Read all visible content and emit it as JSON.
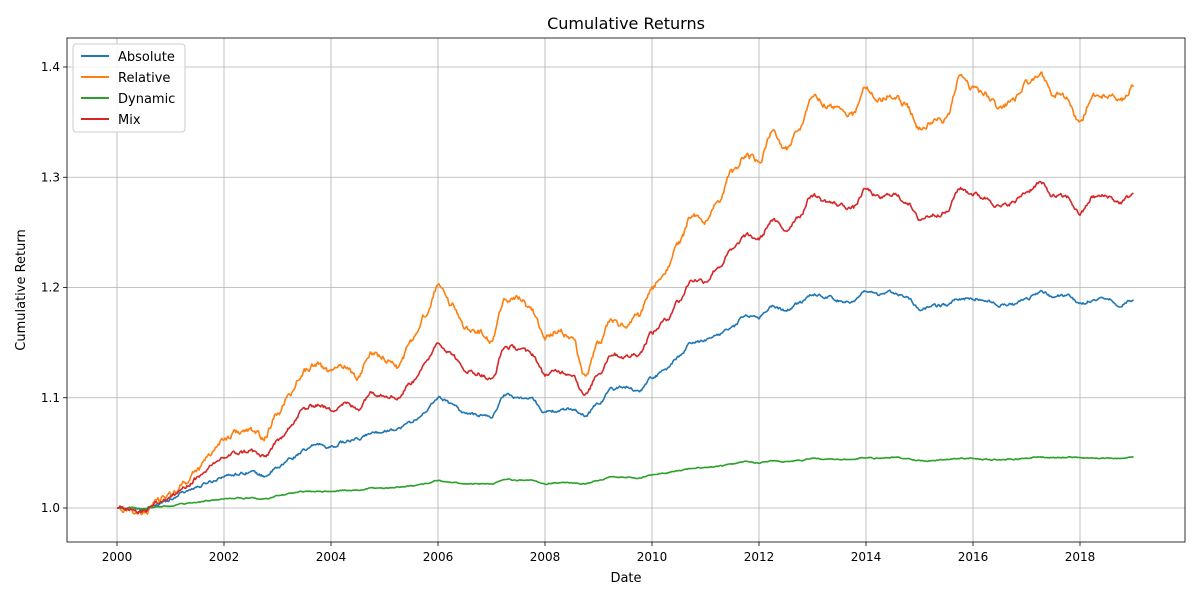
{
  "chart_data": {
    "type": "line",
    "title": "Cumulative Returns",
    "xlabel": "Date",
    "ylabel": "Cumulative Return",
    "xlim": [
      2000,
      2019
    ],
    "ylim": [
      0.97,
      1.425
    ],
    "xticks": [
      2000,
      2002,
      2004,
      2006,
      2008,
      2010,
      2012,
      2014,
      2016,
      2018
    ],
    "xtick_labels": [
      "2000",
      "2002",
      "2004",
      "2006",
      "2008",
      "2010",
      "2012",
      "2014",
      "2016",
      "2018"
    ],
    "yticks": [
      1.0,
      1.1,
      1.2,
      1.3,
      1.4
    ],
    "ytick_labels": [
      "1.0",
      "1.1",
      "1.2",
      "1.3",
      "1.4"
    ],
    "grid": true,
    "legend_position": "top-left",
    "x": [
      2000.0,
      2000.25,
      2000.5,
      2000.75,
      2001.0,
      2001.25,
      2001.5,
      2001.75,
      2002.0,
      2002.25,
      2002.5,
      2002.75,
      2003.0,
      2003.25,
      2003.5,
      2003.75,
      2004.0,
      2004.25,
      2004.5,
      2004.75,
      2005.0,
      2005.25,
      2005.5,
      2005.75,
      2006.0,
      2006.25,
      2006.5,
      2006.75,
      2007.0,
      2007.25,
      2007.5,
      2007.75,
      2008.0,
      2008.25,
      2008.5,
      2008.75,
      2009.0,
      2009.25,
      2009.5,
      2009.75,
      2010.0,
      2010.25,
      2010.5,
      2010.75,
      2011.0,
      2011.25,
      2011.5,
      2011.75,
      2012.0,
      2012.25,
      2012.5,
      2012.75,
      2013.0,
      2013.25,
      2013.5,
      2013.75,
      2014.0,
      2014.25,
      2014.5,
      2014.75,
      2015.0,
      2015.25,
      2015.5,
      2015.75,
      2016.0,
      2016.25,
      2016.5,
      2016.75,
      2017.0,
      2017.25,
      2017.5,
      2017.75,
      2018.0,
      2018.25,
      2018.5,
      2018.75,
      2019.0
    ],
    "series": [
      {
        "name": "Absolute",
        "color": "#1f77b4",
        "values": [
          1.0,
          1.0,
          0.998,
          1.003,
          1.008,
          1.015,
          1.019,
          1.024,
          1.029,
          1.031,
          1.033,
          1.029,
          1.036,
          1.045,
          1.052,
          1.058,
          1.055,
          1.06,
          1.062,
          1.068,
          1.07,
          1.072,
          1.078,
          1.086,
          1.1,
          1.095,
          1.086,
          1.084,
          1.083,
          1.103,
          1.1,
          1.099,
          1.087,
          1.088,
          1.09,
          1.084,
          1.095,
          1.108,
          1.11,
          1.106,
          1.118,
          1.125,
          1.137,
          1.15,
          1.152,
          1.158,
          1.164,
          1.175,
          1.173,
          1.183,
          1.179,
          1.186,
          1.194,
          1.192,
          1.188,
          1.187,
          1.196,
          1.193,
          1.196,
          1.192,
          1.18,
          1.183,
          1.184,
          1.19,
          1.19,
          1.188,
          1.184,
          1.185,
          1.19,
          1.196,
          1.192,
          1.193,
          1.185,
          1.189,
          1.191,
          1.184,
          1.189
        ]
      },
      {
        "name": "Relative",
        "color": "#ff7f0e",
        "values": [
          1.0,
          0.998,
          0.995,
          1.006,
          1.012,
          1.022,
          1.035,
          1.05,
          1.063,
          1.069,
          1.07,
          1.064,
          1.085,
          1.105,
          1.125,
          1.13,
          1.123,
          1.13,
          1.118,
          1.142,
          1.136,
          1.128,
          1.15,
          1.175,
          1.2,
          1.185,
          1.165,
          1.16,
          1.15,
          1.19,
          1.19,
          1.18,
          1.155,
          1.16,
          1.155,
          1.12,
          1.15,
          1.17,
          1.165,
          1.175,
          1.2,
          1.215,
          1.24,
          1.265,
          1.26,
          1.28,
          1.305,
          1.32,
          1.315,
          1.34,
          1.325,
          1.345,
          1.375,
          1.365,
          1.362,
          1.357,
          1.382,
          1.37,
          1.375,
          1.365,
          1.345,
          1.35,
          1.352,
          1.39,
          1.38,
          1.375,
          1.362,
          1.37,
          1.385,
          1.395,
          1.375,
          1.372,
          1.35,
          1.375,
          1.375,
          1.37,
          1.382
        ]
      },
      {
        "name": "Dynamic",
        "color": "#2ca02c",
        "values": [
          1.0,
          1.0,
          0.999,
          1.001,
          1.002,
          1.004,
          1.005,
          1.007,
          1.008,
          1.009,
          1.009,
          1.008,
          1.011,
          1.013,
          1.015,
          1.015,
          1.015,
          1.016,
          1.016,
          1.018,
          1.018,
          1.019,
          1.02,
          1.022,
          1.025,
          1.023,
          1.022,
          1.022,
          1.022,
          1.026,
          1.025,
          1.025,
          1.022,
          1.023,
          1.023,
          1.022,
          1.025,
          1.028,
          1.028,
          1.027,
          1.03,
          1.032,
          1.034,
          1.036,
          1.037,
          1.038,
          1.04,
          1.042,
          1.041,
          1.043,
          1.042,
          1.043,
          1.045,
          1.044,
          1.044,
          1.044,
          1.046,
          1.045,
          1.046,
          1.045,
          1.043,
          1.043,
          1.044,
          1.045,
          1.045,
          1.044,
          1.044,
          1.044,
          1.045,
          1.046,
          1.046,
          1.046,
          1.046,
          1.045,
          1.045,
          1.045,
          1.046
        ]
      },
      {
        "name": "Mix",
        "color": "#d62728",
        "values": [
          1.0,
          0.999,
          0.997,
          1.005,
          1.01,
          1.018,
          1.027,
          1.037,
          1.046,
          1.05,
          1.052,
          1.046,
          1.06,
          1.075,
          1.09,
          1.094,
          1.089,
          1.095,
          1.09,
          1.105,
          1.103,
          1.1,
          1.114,
          1.13,
          1.15,
          1.14,
          1.125,
          1.122,
          1.116,
          1.146,
          1.145,
          1.14,
          1.121,
          1.124,
          1.122,
          1.102,
          1.122,
          1.14,
          1.137,
          1.14,
          1.159,
          1.17,
          1.188,
          1.207,
          1.206,
          1.219,
          1.234,
          1.247,
          1.244,
          1.261,
          1.252,
          1.265,
          1.284,
          1.278,
          1.275,
          1.272,
          1.289,
          1.281,
          1.285,
          1.278,
          1.262,
          1.266,
          1.268,
          1.29,
          1.285,
          1.281,
          1.273,
          1.277,
          1.287,
          1.295,
          1.283,
          1.282,
          1.267,
          1.282,
          1.283,
          1.277,
          1.285
        ]
      }
    ]
  }
}
